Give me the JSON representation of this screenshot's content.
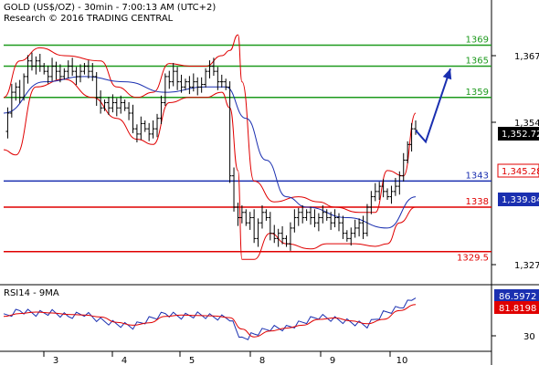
{
  "header": {
    "title": "GOLD (US$/OZ) - 30min - 7:00:13 AM (UTC+2)",
    "subtitle": "Research © 2016 TRADING CENTRAL"
  },
  "price_axis": {
    "ticks": [
      "1,367",
      "1,354",
      "1,327"
    ],
    "badges": [
      {
        "label": "1,352.72",
        "bg": "#000000",
        "fg": "#ffffff"
      },
      {
        "label": "1,345.28",
        "bg": "#ffffff",
        "fg": "#e00000"
      },
      {
        "label": "1,339.84",
        "bg": "#1a2fb0",
        "fg": "#ffffff"
      }
    ]
  },
  "rsi_axis": {
    "ticks": [
      "30"
    ],
    "badges": [
      {
        "label": "86.5972",
        "bg": "#1a2fb0",
        "fg": "#ffffff"
      },
      {
        "label": "81.8198",
        "bg": "#e00000",
        "fg": "#ffffff"
      }
    ]
  },
  "rsi_panel": {
    "label": "RSI14 - 9MA"
  },
  "x_axis": {
    "labels": [
      "3",
      "4",
      "5",
      "8",
      "9",
      "10"
    ]
  },
  "colors": {
    "resistance": "#1e9a1e",
    "support": "#e00000",
    "pivot": "#1a2fb0",
    "bands": "#e00000",
    "ma": "#1a2fb0",
    "candles": "#000000",
    "arrow": "#1a2fb0"
  },
  "chart_data": {
    "type": "candlestick",
    "symbol": "GOLD (US$/OZ)",
    "interval": "30min",
    "price_range": [
      1324,
      1372
    ],
    "last_price": 1352.72,
    "levels": [
      {
        "value": 1369,
        "label": "1369",
        "role": "resistance"
      },
      {
        "value": 1365,
        "label": "1365",
        "role": "resistance"
      },
      {
        "value": 1359,
        "label": "1359",
        "role": "resistance"
      },
      {
        "value": 1343,
        "label": "1343",
        "role": "pivot"
      },
      {
        "value": 1338,
        "label": "1338",
        "role": "support"
      },
      {
        "value": 1329.5,
        "label": "1329.5",
        "role": "support"
      }
    ],
    "price_path": [
      1352.5,
      1356,
      1360,
      1361,
      1359,
      1363,
      1366,
      1365,
      1366,
      1365,
      1364,
      1363,
      1365,
      1364,
      1363,
      1364,
      1365,
      1364,
      1363,
      1364,
      1365,
      1364,
      1363,
      1359,
      1357,
      1358,
      1357,
      1358,
      1357,
      1358,
      1357,
      1356,
      1353,
      1352,
      1354,
      1353,
      1352,
      1353,
      1355,
      1358,
      1363,
      1362,
      1364,
      1362,
      1361,
      1362,
      1361,
      1362,
      1361,
      1361.5,
      1364,
      1365,
      1364,
      1362,
      1362,
      1361,
      1344,
      1338,
      1336,
      1337,
      1335,
      1336,
      1332,
      1335,
      1337,
      1336,
      1333,
      1332,
      1333,
      1332,
      1331,
      1334,
      1336,
      1337,
      1336,
      1337,
      1336,
      1335,
      1336,
      1337,
      1336,
      1335,
      1336,
      1335,
      1333,
      1332,
      1333,
      1334,
      1335,
      1333,
      1338,
      1340,
      1341,
      1342,
      1341,
      1340,
      1341,
      1342,
      1344,
      1347,
      1350,
      1353,
      1352.7
    ],
    "forecast": [
      1352.7,
      1350.5,
      1364.5
    ],
    "moving_average": [
      [
        0,
        1356
      ],
      [
        10,
        1362
      ],
      [
        20,
        1363
      ],
      [
        30,
        1362
      ],
      [
        40,
        1360
      ],
      [
        50,
        1361
      ],
      [
        55,
        1361
      ],
      [
        60,
        1355
      ],
      [
        65,
        1347
      ],
      [
        70,
        1340
      ],
      [
        75,
        1338
      ],
      [
        85,
        1336
      ],
      [
        95,
        1334
      ],
      [
        102,
        1340
      ]
    ],
    "bollinger_upper": [
      [
        0,
        1359
      ],
      [
        4,
        1366
      ],
      [
        9,
        1368.5
      ],
      [
        15,
        1367
      ],
      [
        24,
        1366
      ],
      [
        28,
        1361
      ],
      [
        33,
        1359
      ],
      [
        37,
        1360
      ],
      [
        41,
        1365.5
      ],
      [
        46,
        1365
      ],
      [
        50,
        1365
      ],
      [
        54,
        1367
      ],
      [
        56,
        1368
      ],
      [
        58,
        1371
      ],
      [
        59,
        1362
      ],
      [
        62,
        1343
      ],
      [
        67,
        1339
      ],
      [
        73,
        1340
      ],
      [
        78,
        1339
      ],
      [
        82,
        1338
      ],
      [
        88,
        1337
      ],
      [
        92,
        1337
      ],
      [
        95,
        1345
      ],
      [
        99,
        1344
      ],
      [
        102,
        1356
      ]
    ],
    "bollinger_lower": [
      [
        0,
        1349
      ],
      [
        3,
        1348
      ],
      [
        8,
        1361
      ],
      [
        15,
        1362.5
      ],
      [
        22,
        1359
      ],
      [
        28,
        1355
      ],
      [
        33,
        1351
      ],
      [
        37,
        1350
      ],
      [
        41,
        1358
      ],
      [
        46,
        1359
      ],
      [
        50,
        1359
      ],
      [
        54,
        1360
      ],
      [
        56,
        1357
      ],
      [
        58,
        1345
      ],
      [
        59,
        1328
      ],
      [
        62,
        1328
      ],
      [
        66,
        1333
      ],
      [
        70,
        1331
      ],
      [
        76,
        1330
      ],
      [
        80,
        1331
      ],
      [
        87,
        1331
      ],
      [
        92,
        1330.5
      ],
      [
        95,
        1331
      ],
      [
        98,
        1335
      ],
      [
        102,
        1338
      ]
    ],
    "rsi": {
      "title": "RSI14 - 9MA",
      "range": [
        0,
        100
      ],
      "rsi_last": 86.5972,
      "ma_last": 81.8198,
      "path_points": [
        [
          0,
          55
        ],
        [
          4,
          65
        ],
        [
          8,
          60
        ],
        [
          12,
          62
        ],
        [
          16,
          55
        ],
        [
          20,
          60
        ],
        [
          24,
          48
        ],
        [
          28,
          42
        ],
        [
          32,
          38
        ],
        [
          36,
          50
        ],
        [
          40,
          60
        ],
        [
          44,
          55
        ],
        [
          48,
          58
        ],
        [
          52,
          54
        ],
        [
          56,
          52
        ],
        [
          59,
          15
        ],
        [
          62,
          25
        ],
        [
          66,
          35
        ],
        [
          70,
          35
        ],
        [
          74,
          45
        ],
        [
          78,
          55
        ],
        [
          82,
          50
        ],
        [
          86,
          45
        ],
        [
          90,
          40
        ],
        [
          94,
          60
        ],
        [
          98,
          70
        ],
        [
          102,
          86.6
        ]
      ]
    }
  }
}
